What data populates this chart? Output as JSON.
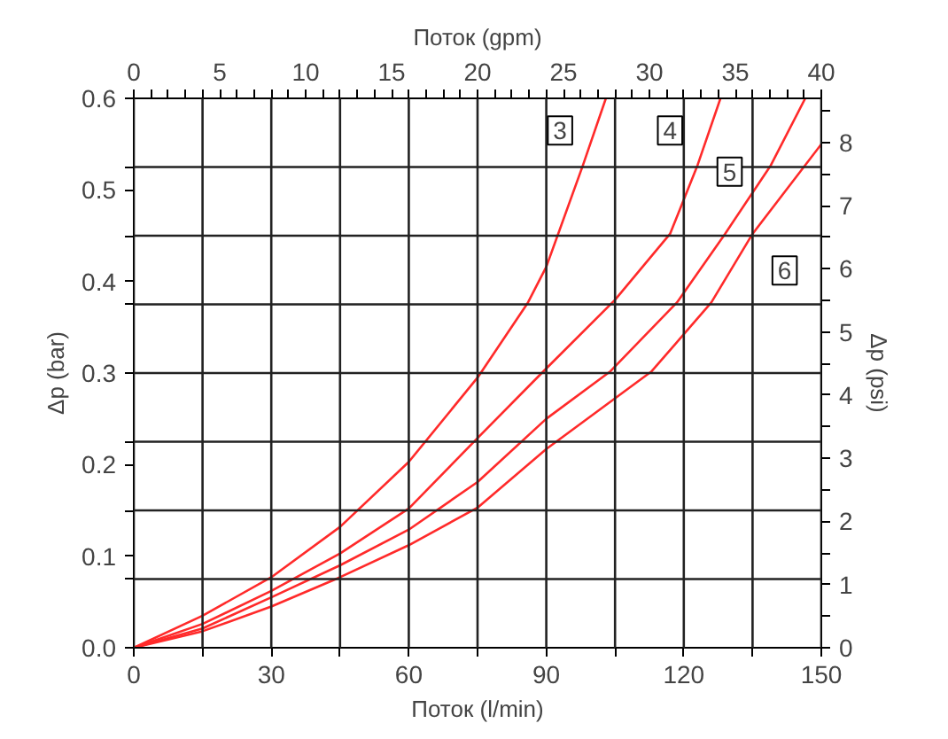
{
  "chart_data": {
    "type": "line",
    "xlabel": "Поток (l/min)",
    "ylabel": "Δp (bar)",
    "y2label": "Δp (psi)",
    "x2label": "Поток (gpm)",
    "xlim": [
      0,
      150
    ],
    "xticks": [
      0,
      {
        "value": 15,
        "label": null
      },
      30,
      {
        "value": 45,
        "label": null
      },
      60,
      {
        "value": 75,
        "label": null
      },
      90,
      {
        "value": 105,
        "label": null
      },
      120,
      {
        "value": 135,
        "label": null
      },
      150
    ],
    "ylim": [
      0,
      0.6
    ],
    "yticks": [
      {
        "value": 0,
        "label": "0.0"
      },
      {
        "value": 0.075,
        "label": null
      },
      0.1,
      {
        "value": 0.15,
        "label": null
      },
      0.2,
      {
        "value": 0.225,
        "label": null
      },
      {
        "value": 0.3,
        "label": null
      },
      0.3,
      {
        "value": 0.375,
        "label": null
      },
      0.4,
      {
        "value": 0.45,
        "label": null
      },
      0.5,
      {
        "value": 0.525,
        "label": null
      },
      0.6
    ],
    "y2lim": [
      0,
      8.7
    ],
    "y2ticks": [
      0,
      {
        "value": 0.5,
        "label": null
      },
      1,
      {
        "value": 1.5,
        "label": null
      },
      2,
      {
        "value": 2.5,
        "label": null
      },
      3,
      {
        "value": 3.5,
        "label": null
      },
      4,
      {
        "value": 4.5,
        "label": null
      },
      5,
      {
        "value": 5.5,
        "label": null
      },
      6,
      {
        "value": 6.5,
        "label": null
      },
      7,
      {
        "value": 7.5,
        "label": null
      },
      8,
      {
        "value": 8.5,
        "label": null
      }
    ],
    "x2lim": [
      0,
      40
    ],
    "x2ticks": [
      0,
      {
        "value": 1,
        "label": null
      },
      {
        "value": 2,
        "label": null
      },
      {
        "value": 3,
        "label": null
      },
      {
        "value": 4,
        "label": null
      },
      5,
      {
        "value": 6,
        "label": null
      },
      {
        "value": 7,
        "label": null
      },
      {
        "value": 8,
        "label": null
      },
      {
        "value": 9,
        "label": null
      },
      10,
      {
        "value": 11,
        "label": null
      },
      {
        "value": 12,
        "label": null
      },
      {
        "value": 13,
        "label": null
      },
      {
        "value": 14,
        "label": null
      },
      15,
      {
        "value": 16,
        "label": null
      },
      {
        "value": 17,
        "label": null
      },
      {
        "value": 18,
        "label": null
      },
      {
        "value": 19,
        "label": null
      },
      20,
      {
        "value": 21,
        "label": null
      },
      {
        "value": 22,
        "label": null
      },
      {
        "value": 23,
        "label": null
      },
      {
        "value": 24,
        "label": null
      },
      25,
      {
        "value": 26,
        "label": null
      },
      {
        "value": 27,
        "label": null
      },
      {
        "value": 28,
        "label": null
      },
      {
        "value": 29,
        "label": null
      },
      30,
      {
        "value": 31,
        "label": null
      },
      {
        "value": 32,
        "label": null
      },
      {
        "value": 33,
        "label": null
      },
      {
        "value": 34,
        "label": null
      },
      35,
      {
        "value": 36,
        "label": null
      },
      {
        "value": 37,
        "label": null
      },
      {
        "value": 38,
        "label": null
      },
      {
        "value": 39,
        "label": null
      },
      40
    ],
    "grid": true,
    "marker": "none",
    "line_style": "solid",
    "series": [
      {
        "color": "#ff2a2a",
        "values": [
          0,
          0.035,
          0.077,
          0.132,
          0.203,
          0.295,
          0.377,
          0.416,
          0.527,
          0.6
        ],
        "x": [
          0,
          15,
          30,
          45,
          60,
          75,
          86,
          90,
          98,
          103
        ]
      },
      {
        "color": "#ff2a2a",
        "x": [
          0,
          15,
          30,
          45,
          60,
          75,
          89,
          105,
          117,
          123,
          128
        ],
        "values": [
          0,
          0.026,
          0.062,
          0.103,
          0.152,
          0.229,
          0.3,
          0.38,
          0.452,
          0.527,
          0.6
        ]
      },
      {
        "color": "#ff2a2a",
        "x": [
          0,
          15,
          30,
          45,
          60,
          75,
          90,
          104,
          118.5,
          129,
          139,
          146.5
        ],
        "values": [
          0,
          0.021,
          0.055,
          0.09,
          0.129,
          0.181,
          0.25,
          0.302,
          0.377,
          0.452,
          0.527,
          0.6
        ]
      },
      {
        "color": "#ff2a2a",
        "x": [
          0,
          15,
          30,
          45,
          60,
          75,
          90,
          113,
          126,
          135,
          150
        ],
        "values": [
          0,
          0.018,
          0.045,
          0.077,
          0.112,
          0.153,
          0.217,
          0.302,
          0.377,
          0.452,
          0.55
        ]
      }
    ],
    "annotations": [
      {
        "text": "3",
        "x": 93,
        "y": 0.565
      },
      {
        "text": "4",
        "x": 117,
        "y": 0.565
      },
      {
        "text": "5",
        "x": 130,
        "y": 0.52
      },
      {
        "text": "6",
        "x": 142,
        "y": 0.412
      }
    ]
  }
}
